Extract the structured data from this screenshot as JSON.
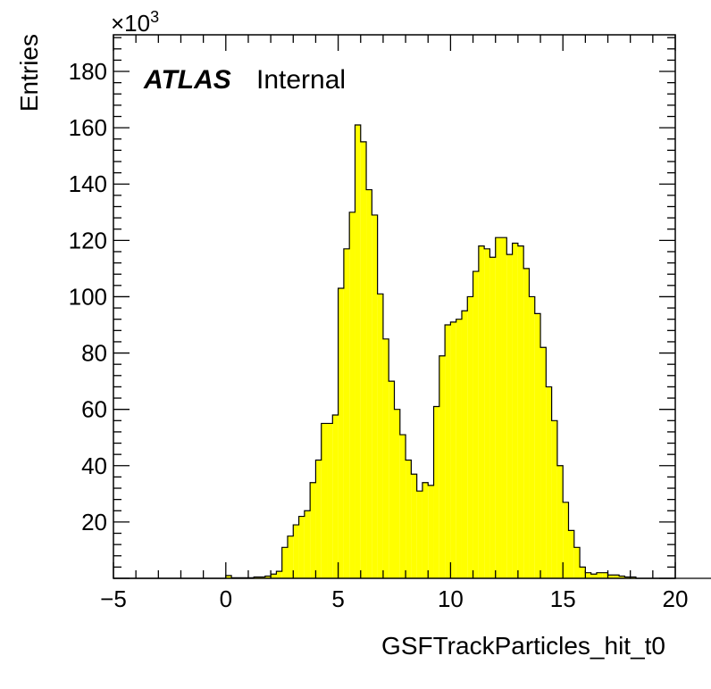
{
  "chart_data": {
    "type": "bar",
    "histogram": true,
    "xlabel": "GSFTrackParticles_hit_t0",
    "ylabel": "Entries",
    "y_multiplier": {
      "base": "×10",
      "exponent": "3"
    },
    "label_bold": "ATLAS",
    "label_text": "Internal",
    "xlim": [
      -5,
      20
    ],
    "ylim": [
      0,
      193
    ],
    "x_ticks": [
      "−5",
      "0",
      "5",
      "10",
      "15",
      "20"
    ],
    "y_ticks": [
      "20",
      "40",
      "60",
      "80",
      "100",
      "120",
      "140",
      "160",
      "180"
    ],
    "bin_width": 0.25,
    "bin_start": -5,
    "fill_color": "#ffff00",
    "line_color": "#000000",
    "values": [
      0,
      0,
      0,
      0,
      0,
      0,
      0,
      0,
      0,
      0,
      0,
      0,
      0,
      0,
      0,
      0,
      0,
      0,
      0,
      0,
      1.0,
      0.2,
      0.2,
      0.2,
      0.2,
      0.5,
      0.5,
      0.8,
      1.5,
      2.5,
      11,
      15,
      19,
      22,
      24,
      34,
      42,
      55,
      55,
      58,
      103,
      117,
      130,
      161,
      155,
      138,
      129,
      101,
      85,
      70,
      60,
      51,
      42,
      37,
      31,
      34,
      33,
      61,
      79,
      90,
      91,
      92,
      95,
      100,
      109,
      118,
      117,
      114,
      121,
      121,
      115,
      119,
      118,
      110,
      100,
      94,
      82,
      68,
      56,
      40,
      27,
      17,
      11,
      4,
      2,
      1.5,
      2,
      2,
      1.2,
      1.2,
      0.8,
      0.5,
      0.5,
      0,
      0,
      0,
      0,
      0,
      0,
      0,
      0,
      0,
      0,
      0,
      0,
      0,
      0,
      0,
      0,
      0
    ]
  }
}
